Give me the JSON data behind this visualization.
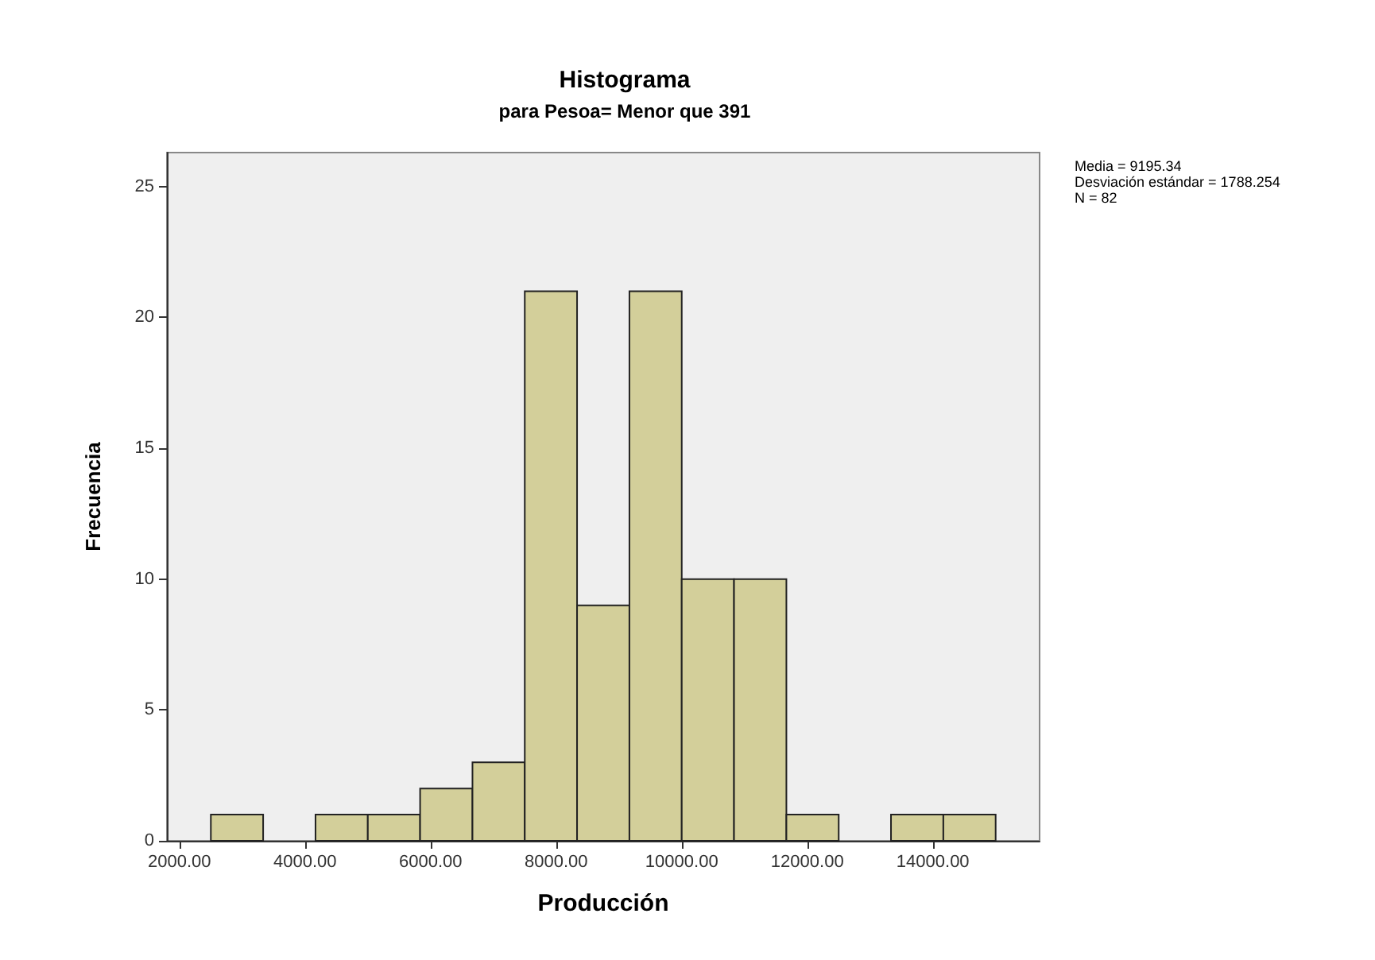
{
  "chart_data": {
    "type": "histogram",
    "title": "Histograma",
    "subtitle": "para Pesoa= Menor que 391",
    "xlabel": "Producción",
    "ylabel": "Frecuencia",
    "bins": [
      2500,
      3333,
      4167,
      5000,
      5833,
      6667,
      7500,
      8333,
      9167,
      10000,
      10833,
      11667,
      12500,
      13333,
      14167,
      15000
    ],
    "values": [
      1,
      0,
      1,
      1,
      2,
      3,
      21,
      9,
      21,
      10,
      10,
      1,
      0,
      1,
      1
    ],
    "color": "#d3cf9a",
    "xlim": [
      1800,
      15700
    ],
    "xticks": [
      {
        "value": 2000,
        "label": "2000.00"
      },
      {
        "value": 4000,
        "label": "4000.00"
      },
      {
        "value": 6000,
        "label": "6000.00"
      },
      {
        "value": 8000,
        "label": "8000.00"
      },
      {
        "value": 10000,
        "label": "10000.00"
      },
      {
        "value": 12000,
        "label": "12000.00"
      },
      {
        "value": 14000,
        "label": "14000.00"
      }
    ],
    "ylim": [
      0,
      26.3
    ],
    "yticks": [
      0,
      5,
      10,
      15,
      20,
      25
    ],
    "annotations": [
      "Media = 9195.34",
      "Desviación estándar = 1788.254",
      "N = 82"
    ],
    "grid": false
  }
}
